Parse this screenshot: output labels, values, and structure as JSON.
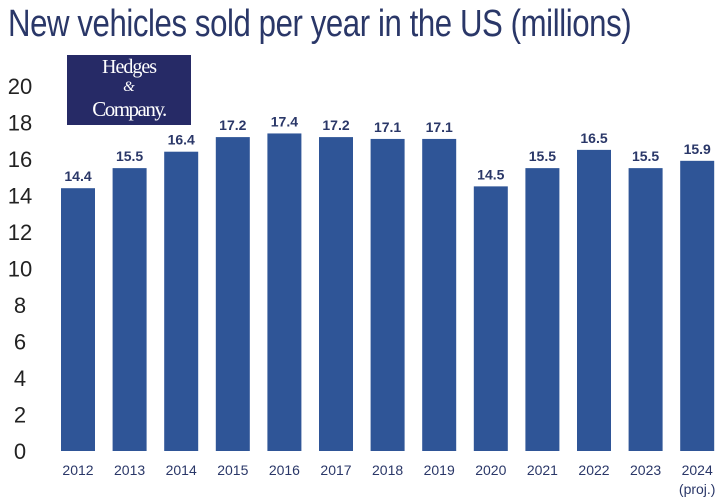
{
  "chart_data": {
    "type": "bar",
    "title": "New vehicles sold per year in the US (millions)",
    "categories": [
      "2012",
      "2013",
      "2014",
      "2015",
      "2016",
      "2017",
      "2018",
      "2019",
      "2020",
      "2021",
      "2022",
      "2023",
      "2024"
    ],
    "category_sublabels": {
      "2024": "(proj.)"
    },
    "values": [
      14.4,
      15.5,
      16.4,
      17.2,
      17.4,
      17.2,
      17.1,
      17.1,
      14.5,
      15.5,
      16.5,
      15.5,
      15.9
    ],
    "data_labels": [
      "14.4",
      "15.5",
      "16.4",
      "17.2",
      "17.4",
      "17.2",
      "17.1",
      "17.1",
      "14.5",
      "15.5",
      "16.5",
      "15.5",
      "15.9"
    ],
    "xlabel": "",
    "ylabel": "",
    "ylim": [
      0,
      20
    ],
    "yticks": [
      "0",
      "2",
      "4",
      "6",
      "8",
      "10",
      "12",
      "14",
      "16",
      "18",
      "20"
    ],
    "grid": false,
    "bar_color": "#2f5597",
    "title_color": "#2a3768"
  },
  "logo": {
    "line1": "Hedges",
    "line2": "&",
    "line3": "Company."
  }
}
